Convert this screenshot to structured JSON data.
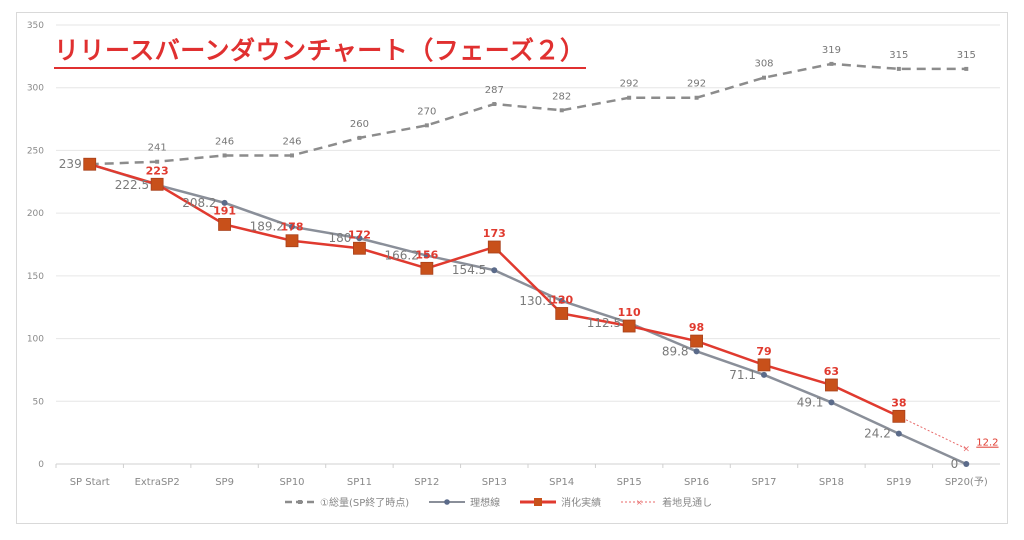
{
  "chart_data": {
    "type": "line",
    "title": "リリースバーンダウンチャート（フェーズ２）",
    "xlabel": "",
    "ylabel": "",
    "ylim": [
      0,
      350
    ],
    "yticks": [
      0,
      50,
      100,
      150,
      200,
      250,
      300,
      350
    ],
    "grid": true,
    "legend_position": "bottom",
    "categories": [
      "SP Start",
      "ExtraSP2",
      "SP9",
      "SP10",
      "SP11",
      "SP12",
      "SP13",
      "SP14",
      "SP15",
      "SP16",
      "SP17",
      "SP18",
      "SP19",
      "SP20(予)"
    ],
    "series": [
      {
        "name": "①総量(SP終了時点)",
        "style": "dashed",
        "color": "#8c8c8c",
        "values": [
          239,
          241,
          246,
          246,
          260,
          270,
          287,
          282,
          292,
          292,
          308,
          319,
          315,
          315
        ],
        "labels": [
          "",
          "241",
          "246",
          "246",
          "260",
          "270",
          "287",
          "282",
          "292",
          "292",
          "308",
          "319",
          "315",
          "315"
        ]
      },
      {
        "name": "理想線",
        "style": "solid",
        "color": "#8a8f99",
        "values": [
          239,
          222.5,
          208.2,
          189.2,
          180,
          166.2,
          154.5,
          130.1,
          112.5,
          89.8,
          71.1,
          49.1,
          24.2,
          0
        ],
        "labels": [
          "239",
          "222.5",
          "208.2",
          "189.2",
          "180",
          "166.2",
          "154.5",
          "130.1",
          "112.5",
          "89.8",
          "71.1",
          "49.1",
          "24.2",
          "0"
        ]
      },
      {
        "name": "消化実績",
        "style": "solid",
        "color": "#e03a2f",
        "values": [
          239,
          223,
          191,
          178,
          172,
          156,
          173,
          120,
          110,
          98,
          79,
          63,
          38,
          null
        ],
        "labels": [
          "",
          "223",
          "191",
          "178",
          "172",
          "156",
          "173",
          "120",
          "110",
          "98",
          "79",
          "63",
          "38",
          ""
        ]
      },
      {
        "name": "着地見通し",
        "style": "dotted",
        "color": "#e86a6a",
        "values": [
          null,
          null,
          null,
          null,
          null,
          null,
          null,
          null,
          null,
          null,
          null,
          null,
          38,
          12.2
        ],
        "labels": [
          "",
          "",
          "",
          "",
          "",
          "",
          "",
          "",
          "",
          "",
          "",
          "",
          "",
          "12.2"
        ]
      }
    ]
  }
}
